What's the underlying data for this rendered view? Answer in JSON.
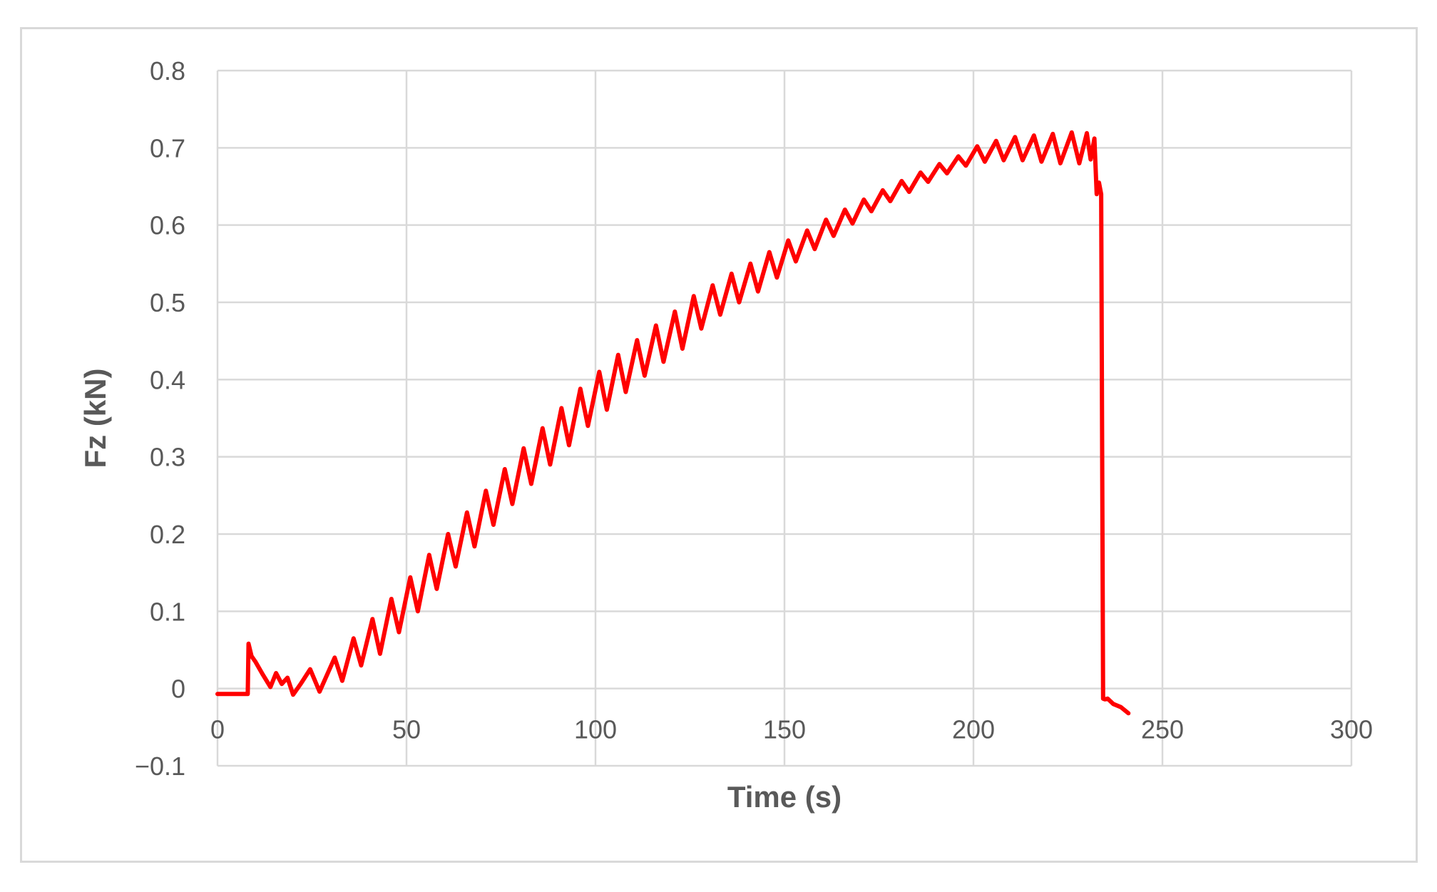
{
  "chart_data": {
    "type": "line",
    "title": "",
    "xlabel": "Time (s)",
    "ylabel": "Fz (kN)",
    "xlim": [
      0,
      300
    ],
    "ylim": [
      -0.1,
      0.8
    ],
    "x_ticks": [
      0,
      50,
      100,
      150,
      200,
      250,
      300
    ],
    "y_ticks": [
      -0.1,
      0,
      0.1,
      0.2,
      0.3,
      0.4,
      0.5,
      0.6,
      0.7,
      0.8
    ],
    "x_tick_labels": [
      "0",
      "50",
      "100",
      "150",
      "200",
      "250",
      "300"
    ],
    "y_tick_labels": [
      "−0.1",
      "0",
      "0.1",
      "0.2",
      "0.3",
      "0.4",
      "0.5",
      "0.6",
      "0.7",
      "0.8"
    ],
    "grid": true,
    "legend": "none",
    "series": [
      {
        "color": "#ff0000",
        "x": [
          0,
          4,
          8,
          8.2,
          9,
          10,
          12,
          14,
          15.5,
          17,
          18.5,
          20,
          22,
          24.5,
          27,
          31,
          33,
          36,
          38,
          41,
          43,
          46,
          48,
          51,
          53,
          56,
          58,
          61,
          63,
          66,
          68,
          71,
          73,
          76,
          78,
          81,
          83,
          86,
          88,
          91,
          93,
          96,
          98,
          101,
          103,
          106,
          108,
          111,
          113,
          116,
          118,
          121,
          123,
          126,
          128,
          131,
          133,
          136,
          138,
          141,
          143,
          146,
          148,
          151,
          153,
          156,
          158,
          161,
          163,
          166,
          168,
          171,
          173,
          176,
          178,
          181,
          183,
          186,
          188,
          191,
          193,
          196,
          198,
          201,
          203,
          206,
          208,
          211,
          213,
          216,
          218,
          221,
          223,
          226,
          228,
          230,
          231,
          232,
          232.6,
          233.2,
          233.8,
          234.3,
          234.8,
          235.5,
          237,
          239,
          241
        ],
        "y": [
          -0.007,
          -0.007,
          -0.007,
          0.058,
          0.042,
          0.035,
          0.018,
          0.002,
          0.02,
          0.006,
          0.014,
          -0.008,
          0.006,
          0.025,
          -0.004,
          0.04,
          0.01,
          0.065,
          0.03,
          0.09,
          0.045,
          0.116,
          0.073,
          0.144,
          0.1,
          0.173,
          0.129,
          0.2,
          0.158,
          0.228,
          0.184,
          0.256,
          0.212,
          0.284,
          0.239,
          0.311,
          0.265,
          0.337,
          0.29,
          0.363,
          0.315,
          0.388,
          0.34,
          0.41,
          0.361,
          0.432,
          0.384,
          0.451,
          0.405,
          0.47,
          0.423,
          0.488,
          0.44,
          0.508,
          0.466,
          0.522,
          0.484,
          0.537,
          0.5,
          0.55,
          0.514,
          0.565,
          0.532,
          0.58,
          0.553,
          0.593,
          0.569,
          0.607,
          0.586,
          0.62,
          0.602,
          0.633,
          0.618,
          0.645,
          0.631,
          0.657,
          0.643,
          0.668,
          0.656,
          0.679,
          0.667,
          0.689,
          0.677,
          0.702,
          0.682,
          0.709,
          0.684,
          0.714,
          0.684,
          0.716,
          0.682,
          0.718,
          0.68,
          0.72,
          0.68,
          0.719,
          0.685,
          0.712,
          0.64,
          0.655,
          0.64,
          -0.013,
          -0.014,
          -0.013,
          -0.02,
          -0.024,
          -0.032
        ]
      }
    ]
  }
}
